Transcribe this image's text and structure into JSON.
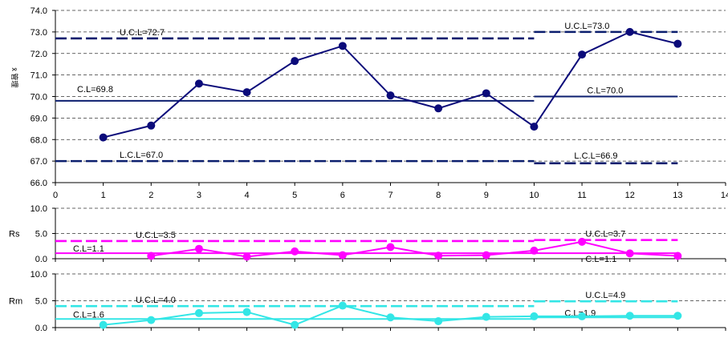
{
  "chart_data": [
    {
      "type": "line",
      "id": "xbar",
      "ylabel": "x̄ 管理",
      "xlim": [
        0,
        14
      ],
      "ylim": [
        66.0,
        74.0
      ],
      "yticks": [
        "66.0",
        "67.0",
        "68.0",
        "69.0",
        "70.0",
        "71.0",
        "72.0",
        "73.0",
        "74.0"
      ],
      "xticks": [
        "0",
        "1",
        "2",
        "3",
        "4",
        "5",
        "6",
        "7",
        "8",
        "9",
        "10",
        "11",
        "12",
        "13",
        "14"
      ],
      "grid": "horizontal-dashed",
      "colors": {
        "data": "#0b0b7a",
        "limits": "#0b1e6e",
        "grid": "#333333"
      },
      "series": [
        {
          "x": [
            1,
            2,
            3,
            4,
            5,
            6,
            7,
            8,
            9,
            10,
            11,
            12,
            13
          ],
          "values": [
            68.1,
            68.65,
            70.6,
            70.2,
            71.65,
            72.35,
            70.05,
            69.45,
            70.15,
            68.6,
            71.95,
            73.0,
            72.45
          ]
        }
      ],
      "segments": [
        {
          "kind": "ucl",
          "x": [
            0,
            10
          ],
          "y": 72.7,
          "label": "U.C.L=72.7"
        },
        {
          "kind": "cl",
          "x": [
            0,
            10
          ],
          "y": 69.8,
          "label": "C.L=69.8"
        },
        {
          "kind": "lcl",
          "x": [
            0,
            10
          ],
          "y": 67.0,
          "label": "L.C.L=67.0"
        },
        {
          "kind": "ucl",
          "x": [
            10,
            13
          ],
          "y": 73.0,
          "label": "U.C.L=73.0"
        },
        {
          "kind": "cl",
          "x": [
            10,
            13
          ],
          "y": 70.0,
          "label": "C.L=70.0"
        },
        {
          "kind": "lcl",
          "x": [
            10,
            13
          ],
          "y": 66.9,
          "label": "L.C.L=66.9"
        }
      ]
    },
    {
      "type": "line",
      "id": "rs",
      "ylabel": "Rs",
      "xlim": [
        0,
        14
      ],
      "ylim": [
        0.0,
        10.0
      ],
      "yticks": [
        "0.0",
        "5.0",
        "10.0"
      ],
      "grid": "horizontal-dashed",
      "colors": {
        "data": "#ff00ff",
        "limits": "#ff00ff",
        "grid": "#333333"
      },
      "series": [
        {
          "x": [
            2,
            3,
            4,
            5,
            6,
            7,
            8,
            9,
            10,
            11,
            12,
            13
          ],
          "values": [
            0.55,
            1.95,
            0.4,
            1.45,
            0.7,
            2.3,
            0.6,
            0.7,
            1.6,
            3.35,
            1.05,
            0.55
          ]
        }
      ],
      "segments": [
        {
          "kind": "ucl",
          "x": [
            0,
            10
          ],
          "y": 3.5,
          "label": "U.C.L=3.5"
        },
        {
          "kind": "cl",
          "x": [
            0,
            10
          ],
          "y": 1.1,
          "label": "C.L=1.1"
        },
        {
          "kind": "ucl",
          "x": [
            10,
            13
          ],
          "y": 3.7,
          "label": "U.C.L=3.7"
        },
        {
          "kind": "cl",
          "x": [
            10,
            13
          ],
          "y": 1.1,
          "label": "C.L=1.1"
        }
      ]
    },
    {
      "type": "line",
      "id": "rm",
      "ylabel": "Rm",
      "xlim": [
        0,
        14
      ],
      "ylim": [
        0.0,
        10.0
      ],
      "yticks": [
        "0.0",
        "5.0",
        "10.0"
      ],
      "grid": "horizontal-dashed",
      "colors": {
        "data": "#33e6e6",
        "limits": "#33e6e6",
        "grid": "#333333"
      },
      "series": [
        {
          "x": [
            1,
            2,
            3,
            4,
            5,
            6,
            7,
            8,
            9,
            10,
            11,
            12,
            13
          ],
          "values": [
            0.5,
            1.4,
            2.7,
            2.9,
            0.5,
            4.1,
            1.9,
            1.2,
            2.0,
            2.1,
            2.1,
            2.2,
            2.2
          ]
        }
      ],
      "segments": [
        {
          "kind": "ucl",
          "x": [
            0,
            10
          ],
          "y": 4.0,
          "label": "U.C.L=4.0"
        },
        {
          "kind": "cl",
          "x": [
            0,
            10
          ],
          "y": 1.6,
          "label": "C.L=1.6"
        },
        {
          "kind": "ucl",
          "x": [
            10,
            13
          ],
          "y": 4.9,
          "label": "U.C.L=4.9"
        },
        {
          "kind": "cl",
          "x": [
            10,
            13
          ],
          "y": 1.9,
          "label": "C.L=1.9"
        }
      ]
    }
  ]
}
